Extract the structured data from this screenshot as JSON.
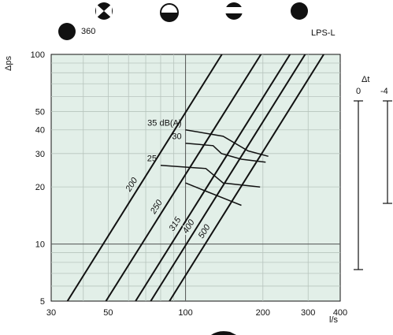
{
  "chart_data": {
    "type": "line",
    "x_scale": "log",
    "y_scale": "log",
    "xlim": [
      30,
      400
    ],
    "ylim": [
      5,
      100
    ],
    "xlabel": "l/s",
    "ylabel": "Δps",
    "grid": true,
    "background": "#e2efe8",
    "x_ticks": [
      30,
      50,
      100,
      200,
      300,
      400
    ],
    "y_ticks": [
      5,
      10,
      20,
      30,
      40,
      50,
      100
    ],
    "series": [
      {
        "name": "200",
        "points": [
          [
            34.7,
            5
          ],
          [
            138.5,
            100
          ]
        ]
      },
      {
        "name": "250",
        "points": [
          [
            49.0,
            5
          ],
          [
            196.5,
            100
          ]
        ]
      },
      {
        "name": "315",
        "points": [
          [
            63.9,
            5
          ],
          [
            255,
            100
          ]
        ]
      },
      {
        "name": "400",
        "points": [
          [
            73.2,
            5
          ],
          [
            292,
            100
          ]
        ]
      },
      {
        "name": "500",
        "points": [
          [
            86.6,
            5
          ],
          [
            345,
            100
          ]
        ]
      }
    ],
    "noise_curves": [
      {
        "label": "35 dB(A)",
        "points": [
          [
            100,
            40
          ],
          [
            125,
            38
          ],
          [
            140,
            37
          ],
          [
            175,
            31
          ],
          [
            210,
            29
          ]
        ]
      },
      {
        "label": "30",
        "points": [
          [
            100,
            34
          ],
          [
            128,
            33
          ],
          [
            138,
            30
          ],
          [
            165,
            28
          ],
          [
            205,
            27
          ]
        ]
      },
      {
        "label": "25",
        "points": [
          [
            80,
            26
          ],
          [
            120,
            25
          ],
          [
            140,
            21
          ],
          [
            195,
            20
          ]
        ]
      },
      {
        "label": "",
        "points": [
          [
            100,
            21
          ],
          [
            120,
            19
          ],
          [
            165,
            16
          ]
        ]
      }
    ],
    "vertical_ref_lines": [
      100
    ],
    "horizontal_ref_lines": [
      10
    ],
    "damper_header": {
      "left": "360",
      "right": "LPS-L"
    },
    "delta_t": {
      "title": "Δt",
      "scales": [
        "0",
        "-4"
      ]
    }
  }
}
